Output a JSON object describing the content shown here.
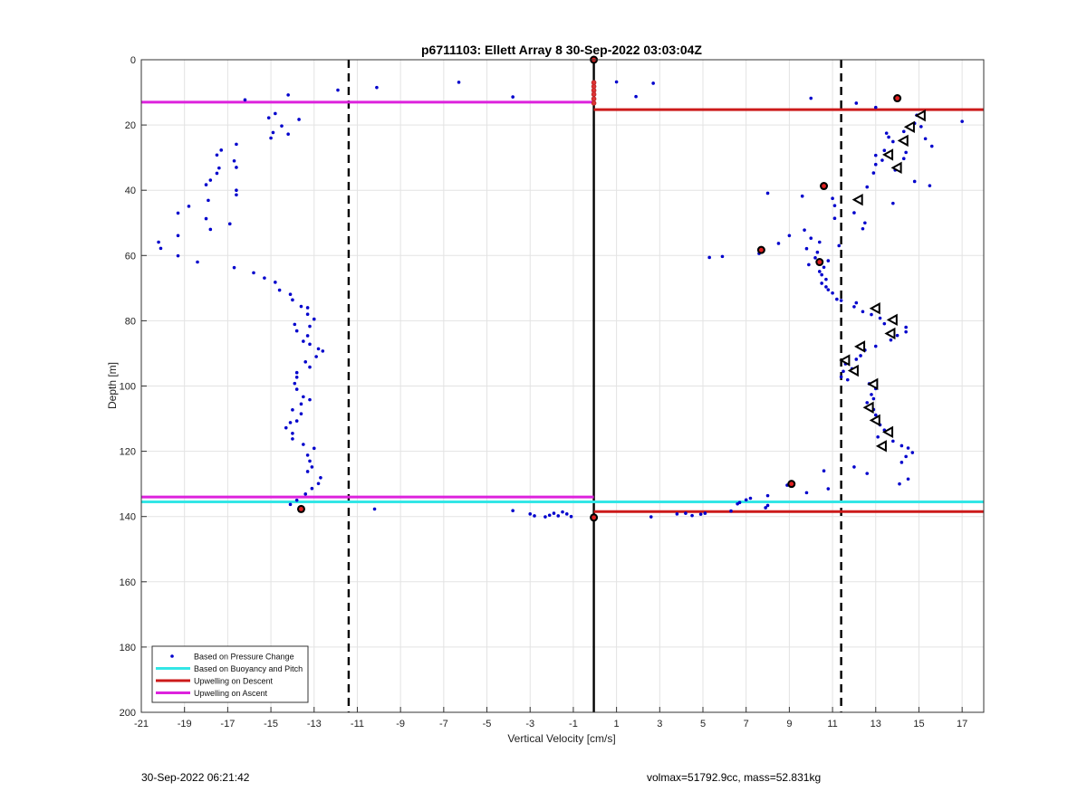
{
  "chart_data": {
    "type": "scatter",
    "title": "p6711103: Ellett Array 8 30-Sep-2022 03:03:04Z",
    "xlabel": "Vertical Velocity [cm/s]",
    "ylabel": "Depth [m]",
    "xlim": [
      -21,
      18
    ],
    "ylim": [
      0,
      200
    ],
    "y_reversed": true,
    "grid": true,
    "xticks": [
      -21,
      -19,
      -17,
      -15,
      -13,
      -11,
      -9,
      -7,
      -5,
      -3,
      -1,
      1,
      3,
      5,
      7,
      9,
      11,
      13,
      15,
      17
    ],
    "yticks": [
      0,
      20,
      40,
      60,
      80,
      100,
      120,
      140,
      160,
      180,
      200
    ],
    "legend_position": "bottom-left",
    "legend": [
      {
        "label": "Based on Pressure Change",
        "color": "#0000cc",
        "style": "dots"
      },
      {
        "label": "Based on Buoyancy and Pitch",
        "color": "#33e6e6",
        "style": "line"
      },
      {
        "label": "Upwelling on Descent",
        "color": "#cc1a1a",
        "style": "line"
      },
      {
        "label": "Upwelling on Ascent",
        "color": "#dd22dd",
        "style": "line"
      }
    ],
    "reference_lines": {
      "dashed_verticals": [
        -11.4,
        11.4
      ],
      "solid_vertical": -0.05
    },
    "horizontal_lines": [
      {
        "series": "Upwelling on Ascent",
        "color": "#dd22dd",
        "y": 13.0,
        "x_from": -21,
        "x_to": -0.05
      },
      {
        "series": "Upwelling on Descent",
        "color": "#cc1a1a",
        "y": 15.3,
        "x_from": -0.05,
        "x_to": 18
      },
      {
        "series": "Upwelling on Ascent",
        "color": "#dd22dd",
        "y": 134.0,
        "x_from": -21,
        "x_to": -0.05
      },
      {
        "series": "Based on Buoyancy and Pitch",
        "color": "#33e6e6",
        "y": 135.5,
        "x_from": -21,
        "x_to": 18
      },
      {
        "series": "Upwelling on Descent",
        "color": "#cc1a1a",
        "y": 138.5,
        "x_from": -0.05,
        "x_to": 18
      }
    ],
    "pressure_change_points": [
      [
        -16.2,
        12.3
      ],
      [
        -14.2,
        10.8
      ],
      [
        -11.9,
        9.3
      ],
      [
        -10.1,
        8.5
      ],
      [
        -6.3,
        6.9
      ],
      [
        -3.8,
        11.4
      ],
      [
        -14.8,
        16.5
      ],
      [
        -13.7,
        18.3
      ],
      [
        -15.1,
        17.8
      ],
      [
        -14.5,
        20.3
      ],
      [
        -14.9,
        22.3
      ],
      [
        -14.2,
        22.8
      ],
      [
        -15.0,
        24.0
      ],
      [
        -16.6,
        25.9
      ],
      [
        -17.3,
        27.7
      ],
      [
        -17.5,
        29.2
      ],
      [
        -16.7,
        31.0
      ],
      [
        -17.4,
        33.2
      ],
      [
        -16.6,
        33.0
      ],
      [
        -17.5,
        34.8
      ],
      [
        -17.8,
        36.9
      ],
      [
        -18.0,
        38.3
      ],
      [
        -16.6,
        40.0
      ],
      [
        -16.6,
        41.4
      ],
      [
        -17.9,
        43.1
      ],
      [
        -18.8,
        44.9
      ],
      [
        -19.3,
        47.0
      ],
      [
        -18.0,
        48.7
      ],
      [
        -16.9,
        50.3
      ],
      [
        -17.8,
        52.0
      ],
      [
        -19.3,
        53.9
      ],
      [
        -20.2,
        55.9
      ],
      [
        -20.1,
        57.8
      ],
      [
        -19.3,
        60.1
      ],
      [
        -18.4,
        62.0
      ],
      [
        -16.7,
        63.7
      ],
      [
        -15.8,
        65.3
      ],
      [
        -15.3,
        66.9
      ],
      [
        -14.8,
        68.2
      ],
      [
        -14.6,
        70.6
      ],
      [
        -14.1,
        71.9
      ],
      [
        -14.0,
        73.6
      ],
      [
        -13.6,
        75.6
      ],
      [
        -13.3,
        76.0
      ],
      [
        -13.3,
        78.0
      ],
      [
        -13.0,
        79.5
      ],
      [
        -13.9,
        81.1
      ],
      [
        -13.2,
        81.7
      ],
      [
        -13.8,
        83.1
      ],
      [
        -13.3,
        84.6
      ],
      [
        -13.5,
        86.3
      ],
      [
        -13.2,
        87.2
      ],
      [
        -12.8,
        88.6
      ],
      [
        -12.6,
        89.3
      ],
      [
        -12.9,
        91.0
      ],
      [
        -13.4,
        92.6
      ],
      [
        -13.2,
        94.2
      ],
      [
        -13.8,
        95.9
      ],
      [
        -13.8,
        97.3
      ],
      [
        -13.9,
        99.2
      ],
      [
        -13.8,
        101.0
      ],
      [
        -13.5,
        103.3
      ],
      [
        -13.2,
        104.2
      ],
      [
        -13.6,
        105.5
      ],
      [
        -14.0,
        107.3
      ],
      [
        -13.6,
        108.5
      ],
      [
        -13.8,
        110.7
      ],
      [
        -14.1,
        111.2
      ],
      [
        -14.3,
        112.8
      ],
      [
        -14.0,
        114.5
      ],
      [
        -14.0,
        116.2
      ],
      [
        -13.5,
        117.9
      ],
      [
        -13.0,
        119.1
      ],
      [
        -13.3,
        121.2
      ],
      [
        -13.2,
        123.0
      ],
      [
        -13.1,
        124.8
      ],
      [
        -13.3,
        126.2
      ],
      [
        -12.7,
        128.1
      ],
      [
        -12.8,
        129.9
      ],
      [
        -13.1,
        131.4
      ],
      [
        -13.4,
        133.1
      ],
      [
        -13.8,
        135.0
      ],
      [
        -14.1,
        136.3
      ],
      [
        1.0,
        6.8
      ],
      [
        1.9,
        11.3
      ],
      [
        2.7,
        7.2
      ],
      [
        10.0,
        11.8
      ],
      [
        12.1,
        13.3
      ],
      [
        13.0,
        14.6
      ],
      [
        14.0,
        11.7
      ],
      [
        14.9,
        17.0
      ],
      [
        17.0,
        18.9
      ],
      [
        14.8,
        19.5
      ],
      [
        15.1,
        20.5
      ],
      [
        13.5,
        22.5
      ],
      [
        14.3,
        22.0
      ],
      [
        13.6,
        23.7
      ],
      [
        13.8,
        25.1
      ],
      [
        15.3,
        24.2
      ],
      [
        15.6,
        26.5
      ],
      [
        13.4,
        27.8
      ],
      [
        14.4,
        28.4
      ],
      [
        13.0,
        29.3
      ],
      [
        13.3,
        30.8
      ],
      [
        14.3,
        30.3
      ],
      [
        13.0,
        32.1
      ],
      [
        13.9,
        33.8
      ],
      [
        12.9,
        34.7
      ],
      [
        14.8,
        37.3
      ],
      [
        15.5,
        38.6
      ],
      [
        12.6,
        39.0
      ],
      [
        8.0,
        40.9
      ],
      [
        9.6,
        41.8
      ],
      [
        11.0,
        42.5
      ],
      [
        13.8,
        44.0
      ],
      [
        11.1,
        44.7
      ],
      [
        12.0,
        46.9
      ],
      [
        11.1,
        48.6
      ],
      [
        12.5,
        50.0
      ],
      [
        12.4,
        51.8
      ],
      [
        9.7,
        52.2
      ],
      [
        9.0,
        53.9
      ],
      [
        10.0,
        54.7
      ],
      [
        10.4,
        55.9
      ],
      [
        8.5,
        56.3
      ],
      [
        11.3,
        57.0
      ],
      [
        9.8,
        57.9
      ],
      [
        10.3,
        59.0
      ],
      [
        7.6,
        59.4
      ],
      [
        5.3,
        60.6
      ],
      [
        5.9,
        60.3
      ],
      [
        10.2,
        60.7
      ],
      [
        10.8,
        61.6
      ],
      [
        9.9,
        62.8
      ],
      [
        10.6,
        63.6
      ],
      [
        10.4,
        64.9
      ],
      [
        10.5,
        65.9
      ],
      [
        10.7,
        67.3
      ],
      [
        10.5,
        68.5
      ],
      [
        10.7,
        69.6
      ],
      [
        10.8,
        70.5
      ],
      [
        11.0,
        71.5
      ],
      [
        11.2,
        73.4
      ],
      [
        11.4,
        73.8
      ],
      [
        12.1,
        74.5
      ],
      [
        12.0,
        75.7
      ],
      [
        12.4,
        77.2
      ],
      [
        12.8,
        78.1
      ],
      [
        13.2,
        79.2
      ],
      [
        13.4,
        80.9
      ],
      [
        14.4,
        82.0
      ],
      [
        14.4,
        83.4
      ],
      [
        14.0,
        84.5
      ],
      [
        13.7,
        85.9
      ],
      [
        13.0,
        87.8
      ],
      [
        12.5,
        89.0
      ],
      [
        12.3,
        90.7
      ],
      [
        12.1,
        91.8
      ],
      [
        11.6,
        93.2
      ],
      [
        11.9,
        94.7
      ],
      [
        11.5,
        95.5
      ],
      [
        11.4,
        97.2
      ],
      [
        11.7,
        98.1
      ],
      [
        12.7,
        99.3
      ],
      [
        13.0,
        100.8
      ],
      [
        12.8,
        102.6
      ],
      [
        12.9,
        103.9
      ],
      [
        12.6,
        105.1
      ],
      [
        12.9,
        107.2
      ],
      [
        13.0,
        108.9
      ],
      [
        12.9,
        110.6
      ],
      [
        13.2,
        111.9
      ],
      [
        13.4,
        113.5
      ],
      [
        13.1,
        115.6
      ],
      [
        13.8,
        116.9
      ],
      [
        14.2,
        118.3
      ],
      [
        14.5,
        119.0
      ],
      [
        14.7,
        120.4
      ],
      [
        14.4,
        121.6
      ],
      [
        14.2,
        123.4
      ],
      [
        12.0,
        124.8
      ],
      [
        10.6,
        126.0
      ],
      [
        12.6,
        126.8
      ],
      [
        14.5,
        128.5
      ],
      [
        14.1,
        130.0
      ],
      [
        8.9,
        130.4
      ],
      [
        10.8,
        131.5
      ],
      [
        9.8,
        132.7
      ],
      [
        8.0,
        133.6
      ],
      [
        7.2,
        134.4
      ],
      [
        7.0,
        134.9
      ],
      [
        6.7,
        135.7
      ],
      [
        6.6,
        136.1
      ],
      [
        8.0,
        136.6
      ],
      [
        7.9,
        137.3
      ],
      [
        6.3,
        138.3
      ],
      [
        5.1,
        139.0
      ],
      [
        4.9,
        139.3
      ],
      [
        4.2,
        139.0
      ],
      [
        4.5,
        139.7
      ],
      [
        3.8,
        139.2
      ],
      [
        2.6,
        140.1
      ],
      [
        -10.2,
        137.7
      ],
      [
        -3.8,
        138.2
      ],
      [
        -3.0,
        139.2
      ],
      [
        -2.8,
        139.8
      ],
      [
        -2.1,
        139.6
      ],
      [
        -1.9,
        139.0
      ],
      [
        -1.5,
        138.6
      ],
      [
        -1.7,
        139.8
      ],
      [
        -1.3,
        139.2
      ],
      [
        -2.3,
        140.1
      ],
      [
        -1.1,
        140.0
      ]
    ],
    "red_star_markers": [
      [
        -0.05,
        0.0
      ],
      [
        14.0,
        11.8
      ],
      [
        10.6,
        38.7
      ],
      [
        7.7,
        58.3
      ],
      [
        10.4,
        62.0
      ],
      [
        9.1,
        130.0
      ],
      [
        -13.6,
        137.7
      ],
      [
        -0.05,
        140.3
      ]
    ],
    "triangle_markers": [
      [
        15.1,
        17.1
      ],
      [
        14.6,
        20.6
      ],
      [
        14.3,
        24.8
      ],
      [
        13.6,
        29.1
      ],
      [
        14.0,
        33.1
      ],
      [
        12.2,
        42.9
      ],
      [
        13.0,
        76.2
      ],
      [
        13.8,
        79.7
      ],
      [
        13.7,
        83.9
      ],
      [
        12.3,
        87.9
      ],
      [
        11.6,
        92.1
      ],
      [
        12.0,
        95.3
      ],
      [
        12.9,
        99.4
      ],
      [
        12.7,
        106.6
      ],
      [
        13.0,
        110.5
      ],
      [
        13.6,
        114.1
      ],
      [
        13.3,
        118.4
      ]
    ],
    "solid_line_markers": [
      [
        -0.05,
        7.0
      ],
      [
        -0.05,
        8.2
      ],
      [
        -0.05,
        9.4
      ],
      [
        -0.05,
        10.6
      ],
      [
        -0.05,
        12.0
      ],
      [
        -0.05,
        13.3
      ]
    ]
  },
  "footer": {
    "left": "30-Sep-2022 06:21:42",
    "right": "volmax=51792.9cc, mass=52.831kg"
  }
}
